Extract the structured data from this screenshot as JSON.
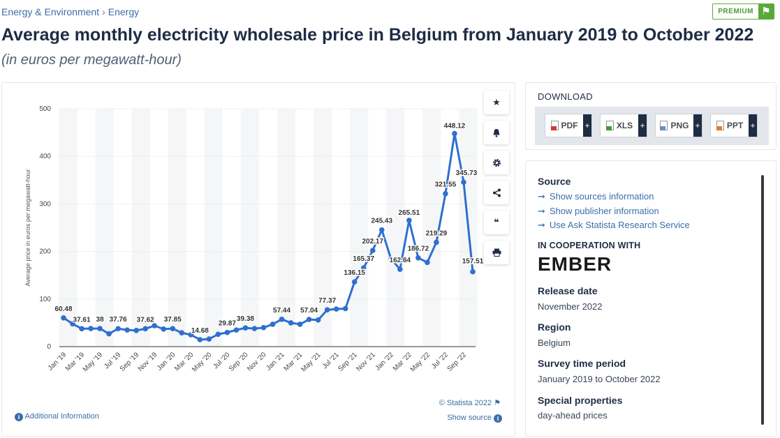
{
  "breadcrumb": {
    "item1": "Energy & Environment",
    "sep": "›",
    "item2": "Energy"
  },
  "premium": {
    "label": "PREMIUM",
    "icon": "flag-icon"
  },
  "title": "Average monthly electricity wholesale price in Belgium from January 2019 to October 2022",
  "subtitle": "(in euros per megawatt-hour)",
  "toolbar": {
    "icons": [
      "star-icon",
      "bell-icon",
      "gear-icon",
      "share-icon",
      "quote-icon",
      "print-icon"
    ]
  },
  "chart_footer": {
    "copyright": "© Statista 2022",
    "show_source": "Show source",
    "additional_info": "Additional Information"
  },
  "download": {
    "title": "DOWNLOAD",
    "buttons": [
      {
        "label": "PDF"
      },
      {
        "label": "XLS"
      },
      {
        "label": "PNG"
      },
      {
        "label": "PPT"
      }
    ],
    "plus": "+"
  },
  "info": {
    "source_heading": "Source",
    "links": [
      "Show sources information",
      "Show publisher information",
      "Use Ask Statista Research Service"
    ],
    "coop_heading": "IN COOPERATION WITH",
    "coop_logo": "EMBER",
    "release_heading": "Release date",
    "release_value": "November 2022",
    "region_heading": "Region",
    "region_value": "Belgium",
    "survey_heading": "Survey time period",
    "survey_value": "January 2019 to October 2022",
    "special_heading": "Special properties",
    "special_value": "day-ahead prices"
  },
  "chart_data": {
    "type": "line",
    "title": "",
    "xlabel": "",
    "ylabel": "Average price in euros per megawatt-hour",
    "ylim": [
      0,
      500
    ],
    "yticks": [
      0,
      100,
      200,
      300,
      400,
      500
    ],
    "grid": true,
    "color": "#2f6fd0",
    "categories": [
      "Jan '19",
      "Feb '19",
      "Mar '19",
      "Apr '19",
      "May '19",
      "Jun '19",
      "Jul '19",
      "Aug '19",
      "Sep '19",
      "Oct '19",
      "Nov '19",
      "Dec '19",
      "Jan '20",
      "Feb '20",
      "Mar '20",
      "Apr '20",
      "May '20",
      "Jun '20",
      "Jul '20",
      "Aug '20",
      "Sep '20",
      "Oct '20",
      "Nov '20",
      "Dec '20",
      "Jan '21",
      "Feb '21",
      "Mar '21",
      "Apr '21",
      "May '21",
      "Jun '21",
      "Jul '21",
      "Aug '21",
      "Sep '21",
      "Oct '21",
      "Nov '21",
      "Dec '21",
      "Jan '22",
      "Feb '22",
      "Mar '22",
      "Apr '22",
      "May '22",
      "Jun '22",
      "Jul '22",
      "Aug '22",
      "Sep '22",
      "Oct '22"
    ],
    "tick_labels": [
      "Jan '19",
      "Mar '19",
      "May '19",
      "Jul '19",
      "Sep '19",
      "Nov '19",
      "Jan '20",
      "Mar '20",
      "May '20",
      "Jul '20",
      "Sep '20",
      "Nov '20",
      "Jan '21",
      "Mar '21",
      "May '21",
      "Jul '21",
      "Sep '21",
      "Nov '21",
      "Jan '22",
      "Mar '22",
      "May '22",
      "Jul '22",
      "Sep '22"
    ],
    "values": [
      60.48,
      48,
      37.61,
      38,
      38,
      27,
      37.76,
      35,
      34,
      37.62,
      44,
      37,
      37.85,
      29,
      25,
      14.68,
      16,
      26,
      29.87,
      35,
      39.38,
      38,
      40,
      47,
      57.44,
      50,
      47,
      57.04,
      56,
      77.37,
      79,
      80,
      136.15,
      165.37,
      202.17,
      245.43,
      185,
      162.64,
      265.51,
      186.72,
      177,
      219.29,
      321.55,
      448.12,
      345.73,
      157.51
    ],
    "data_labels": [
      {
        "i": 0,
        "text": "60.48"
      },
      {
        "i": 2,
        "text": "37.61"
      },
      {
        "i": 4,
        "text": "38"
      },
      {
        "i": 6,
        "text": "37.76"
      },
      {
        "i": 9,
        "text": "37.62"
      },
      {
        "i": 12,
        "text": "37.85"
      },
      {
        "i": 15,
        "text": "14.68"
      },
      {
        "i": 18,
        "text": "29.87"
      },
      {
        "i": 20,
        "text": "39.38"
      },
      {
        "i": 24,
        "text": "57.44"
      },
      {
        "i": 27,
        "text": "57.04"
      },
      {
        "i": 29,
        "text": "77.37"
      },
      {
        "i": 32,
        "text": "136.15"
      },
      {
        "i": 33,
        "text": "165.37"
      },
      {
        "i": 34,
        "text": "202.17"
      },
      {
        "i": 35,
        "text": "245.43"
      },
      {
        "i": 37,
        "text": "162.64"
      },
      {
        "i": 38,
        "text": "265.51"
      },
      {
        "i": 39,
        "text": "186.72"
      },
      {
        "i": 41,
        "text": "219.29"
      },
      {
        "i": 42,
        "text": "321.55"
      },
      {
        "i": 43,
        "text": "448.12"
      },
      {
        "i": 44,
        "text": "345.73"
      },
      {
        "i": 45,
        "text": "157.51"
      }
    ]
  }
}
